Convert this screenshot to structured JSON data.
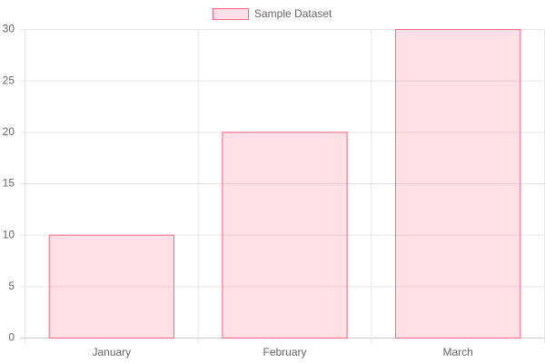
{
  "chart_data": {
    "type": "bar",
    "categories": [
      "January",
      "February",
      "March"
    ],
    "series": [
      {
        "name": "Sample Dataset",
        "color": "#ff6384",
        "values": [
          10,
          20,
          30
        ]
      }
    ],
    "ylim": [
      0,
      30
    ],
    "yticks": [
      0,
      5,
      10,
      15,
      20,
      25,
      30
    ],
    "grid": true,
    "legend": "top"
  }
}
